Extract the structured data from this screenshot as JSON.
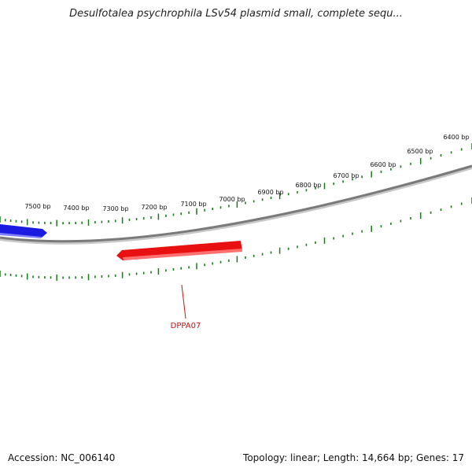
{
  "title": "Desulfotalea psychrophila LSv54 plasmid small, complete sequ...",
  "footer": {
    "accession": "Accession: NC_006140",
    "summary": "Topology: linear; Length: 14,664 bp; Genes: 17"
  },
  "colors": {
    "backbone": "#7a7a7a",
    "ticks": "#1a7a1a",
    "forward_gene": "#1a1ae0",
    "reverse_gene": "#e81010",
    "gene_label": "#cc1010"
  },
  "ruler_labels": [
    "7500 bp",
    "7400 bp",
    "7300 bp",
    "7200 bp",
    "7100 bp",
    "7000 bp",
    "6900 bp",
    "6800 bp",
    "6700 bp",
    "6600 bp",
    "6500 bp",
    "6400 bp"
  ],
  "genes": [
    {
      "label": "",
      "strand": "forward"
    },
    {
      "label": "DPPA07",
      "strand": "reverse"
    }
  ]
}
